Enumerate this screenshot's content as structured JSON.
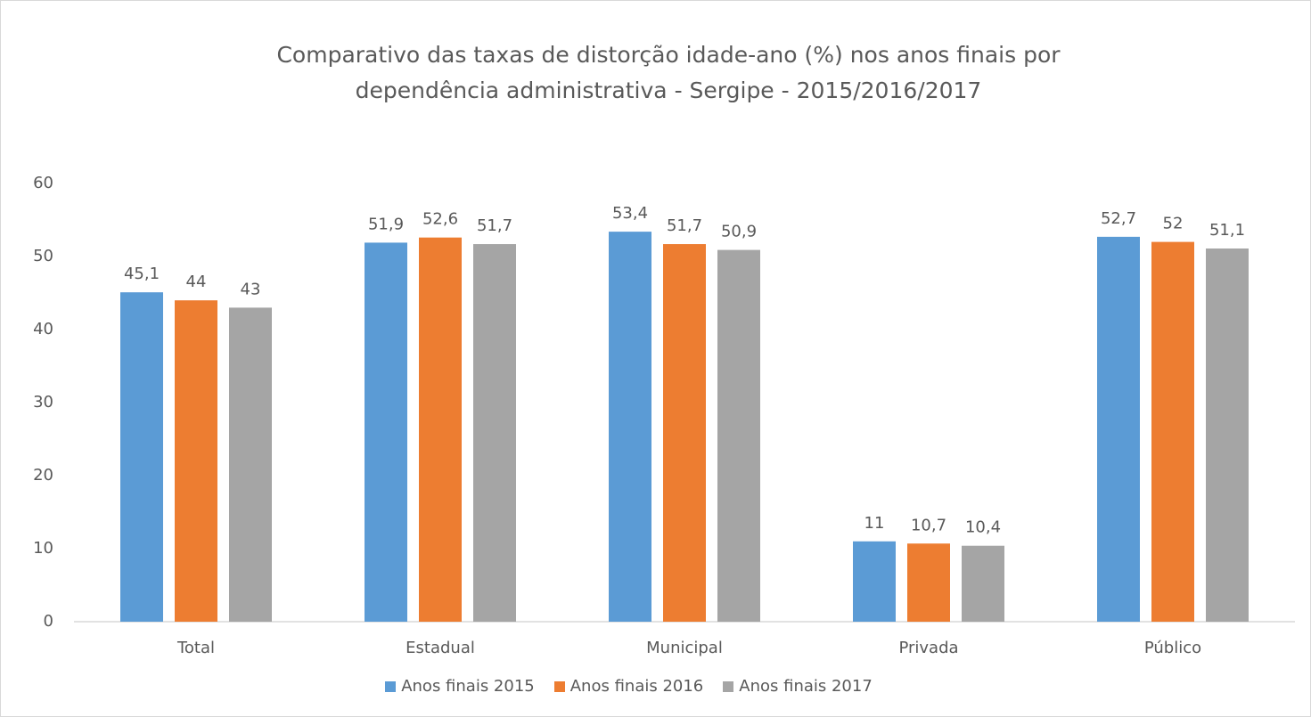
{
  "chart_data": {
    "type": "bar",
    "title": "Comparativo das taxas de distorção idade-ano (%) nos anos finais por dependência administrativa - Sergipe - 2015/2016/2017",
    "categories": [
      "Total",
      "Estadual",
      "Municipal",
      "Privada",
      "Público"
    ],
    "series": [
      {
        "name": "Anos finais 2015",
        "color": "#5b9bd5",
        "values": [
          45.1,
          51.9,
          53.4,
          11,
          52.7
        ],
        "value_labels": [
          "45,1",
          "51,9",
          "53,4",
          "11",
          "52,7"
        ]
      },
      {
        "name": "Anos finais 2016",
        "color": "#ed7d31",
        "values": [
          44,
          52.6,
          51.7,
          10.7,
          52
        ],
        "value_labels": [
          "44",
          "52,6",
          "51,7",
          "10,7",
          "52"
        ]
      },
      {
        "name": "Anos finais 2017",
        "color": "#a5a5a5",
        "values": [
          43,
          51.7,
          50.9,
          10.4,
          51.1
        ],
        "value_labels": [
          "43",
          "51,7",
          "50,9",
          "10,4",
          "51,1"
        ]
      }
    ],
    "ylim": [
      0,
      60
    ],
    "yticks": [
      0,
      10,
      20,
      30,
      40,
      50,
      60
    ],
    "grid": false,
    "legend": "bottom"
  }
}
